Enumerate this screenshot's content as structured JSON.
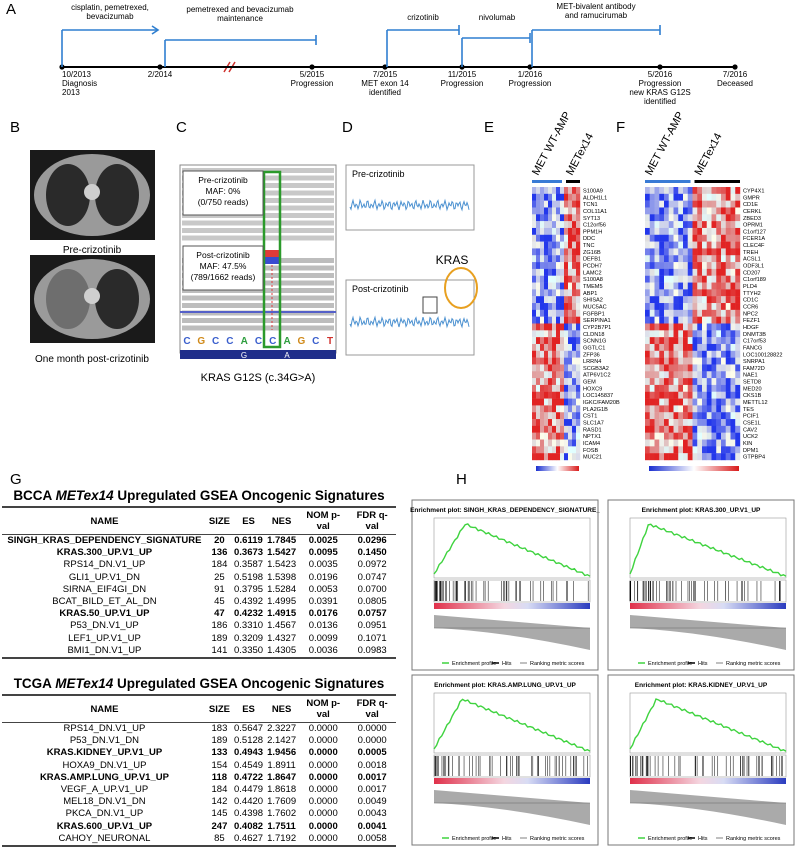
{
  "panelA": {
    "label": "A",
    "treatments": [
      {
        "lines": [
          "cisplatin, pemetrexed,",
          "bevacizumab"
        ]
      },
      {
        "lines": [
          "pemetrexed and bevacizumab",
          "maintenance"
        ]
      },
      {
        "lines": [
          "crizotinib"
        ]
      },
      {
        "lines": [
          "nivolumab"
        ]
      },
      {
        "lines": [
          "MET-bivalent antibody",
          "and ramucirumab"
        ]
      }
    ],
    "events": [
      {
        "lines": [
          "10/2013",
          "Diagnosis",
          "2013"
        ]
      },
      {
        "lines": [
          "2/2014"
        ]
      },
      {
        "lines": [
          "5/2015",
          "Progression"
        ]
      },
      {
        "lines": [
          "7/2015",
          "MET exon 14",
          "identified"
        ]
      },
      {
        "lines": [
          "11/2015",
          "Progression"
        ]
      },
      {
        "lines": [
          "1/2016",
          "Progression"
        ]
      },
      {
        "lines": [
          "5/2016",
          "Progression",
          "new KRAS G12S",
          "identified"
        ]
      },
      {
        "lines": [
          "7/2016",
          "Deceased"
        ]
      }
    ]
  },
  "panelB": {
    "label": "B",
    "captions": [
      "Pre-crizotinib",
      "One month post-crizotinib"
    ]
  },
  "panelC": {
    "label": "C",
    "pre": [
      "Pre-crizotinib",
      "MAF: 0%",
      "(0/750 reads)"
    ],
    "post": [
      "Post-crizotinib",
      "MAF: 47.5%",
      "(789/1662 reads)"
    ],
    "sequence": [
      "C",
      "G",
      "C",
      "C",
      "A",
      "C",
      "C",
      "A",
      "G",
      "C",
      "T"
    ],
    "codon": [
      "G",
      "A"
    ],
    "base_colors": {
      "A": "#2e9e3e",
      "C": "#3a5fcd",
      "G": "#d08a1a",
      "T": "#d0312d"
    },
    "caption": "KRAS G12S (c.34G>A)"
  },
  "panelD": {
    "label": "D",
    "pre": "Pre-crizotinib",
    "post": "Post-crizotinib",
    "gene": "KRAS"
  },
  "panelE": {
    "label": "E",
    "columns": [
      "MET WT-AMP",
      "METex14"
    ],
    "genes": [
      "S100A9",
      "ALDH1L1",
      "TCN1",
      "COL11A1",
      "SYT13",
      "C12orf56",
      "PPM1H",
      "DDC",
      "TNC",
      "ZG16B",
      "DEFB1",
      "PCDH7",
      "LAMC2",
      "S100A8",
      "TMEM5",
      "ABP1",
      "SHISA2",
      "MUC5AC",
      "FGFBP1",
      "SERPINA1",
      "CYP2B7P1",
      "CLDN18",
      "SCNN1G",
      "GGTLC1",
      "ZFP36",
      "LRRN4",
      "SCGB3A2",
      "ATP6V1C2",
      "GEM",
      "HOXC9",
      "LOC145837",
      "IGKC/FAM20B",
      "PLA2G1B",
      "CST1",
      "SLC1A7",
      "RASD1",
      "NPTX1",
      "ICAM4",
      "FOSB",
      "MUC21"
    ]
  },
  "panelF": {
    "label": "F",
    "columns": [
      "MET WT-AMP",
      "METex14"
    ],
    "genes": [
      "CYP4X1",
      "GMPR",
      "CD1E",
      "CERKL",
      "ZBED3",
      "OPRM1",
      "C1orf127",
      "FCER1A",
      "CLEC4F",
      "TREH",
      "ACSL1",
      "ODF3L1",
      "CD207",
      "C1orf189",
      "PLD4",
      "TTYH2",
      "CD1C",
      "CCR6",
      "NPC2",
      "FEZF1",
      "HDGF",
      "DNMT3B",
      "C17orf53",
      "FANCG",
      "LOC100128822",
      "SNRPA1",
      "FAM72D",
      "NAE1",
      "SETD8",
      "MED20",
      "CKS1B",
      "METTL12",
      "TES",
      "PCIF1",
      "CSE1L",
      "CAV2",
      "UCK2",
      "KIN",
      "DPM1",
      "GTPBP4"
    ]
  },
  "panelG": {
    "label": "G",
    "tables": [
      {
        "title": {
          "prefix": "BCCA",
          "italic": "METex14",
          "suffix": "Upregulated GSEA Oncogenic Signatures"
        },
        "headers": [
          "NAME",
          "SIZE",
          "ES",
          "NES",
          "NOM p-val",
          "FDR q-val"
        ],
        "rows": [
          {
            "bold": true,
            "cells": [
              "SINGH_KRAS_DEPENDENCY_SIGNATURE",
              "20",
              "0.6119",
              "1.7845",
              "0.0025",
              "0.0296"
            ]
          },
          {
            "bold": true,
            "cells": [
              "KRAS.300_UP.V1_UP",
              "136",
              "0.3673",
              "1.5427",
              "0.0095",
              "0.1450"
            ]
          },
          {
            "bold": false,
            "cells": [
              "RPS14_DN.V1_UP",
              "184",
              "0.3587",
              "1.5423",
              "0.0035",
              "0.0972"
            ]
          },
          {
            "bold": false,
            "cells": [
              "GLI1_UP.V1_DN",
              "25",
              "0.5198",
              "1.5398",
              "0.0196",
              "0.0747"
            ]
          },
          {
            "bold": false,
            "cells": [
              "SIRNA_EIF4GI_DN",
              "91",
              "0.3795",
              "1.5284",
              "0.0053",
              "0.0700"
            ]
          },
          {
            "bold": false,
            "cells": [
              "BCAT_BILD_ET_AL_DN",
              "45",
              "0.4392",
              "1.4995",
              "0.0391",
              "0.0805"
            ]
          },
          {
            "bold": true,
            "cells": [
              "KRAS.50_UP.V1_UP",
              "47",
              "0.4232",
              "1.4915",
              "0.0176",
              "0.0757"
            ]
          },
          {
            "bold": false,
            "cells": [
              "P53_DN.V1_UP",
              "186",
              "0.3310",
              "1.4567",
              "0.0136",
              "0.0951"
            ]
          },
          {
            "bold": false,
            "cells": [
              "LEF1_UP.V1_UP",
              "189",
              "0.3209",
              "1.4327",
              "0.0099",
              "0.1071"
            ]
          },
          {
            "bold": false,
            "cells": [
              "BMI1_DN.V1_UP",
              "141",
              "0.3350",
              "1.4305",
              "0.0036",
              "0.0983"
            ]
          }
        ]
      },
      {
        "title": {
          "prefix": "TCGA",
          "italic": "METex14",
          "suffix": "Upregulated GSEA Oncogenic Signatures"
        },
        "headers": [
          "NAME",
          "SIZE",
          "ES",
          "NES",
          "NOM p-val",
          "FDR q-val"
        ],
        "rows": [
          {
            "bold": false,
            "cells": [
              "RPS14_DN.V1_UP",
              "183",
              "0.5647",
              "2.3227",
              "0.0000",
              "0.0000"
            ]
          },
          {
            "bold": false,
            "cells": [
              "P53_DN.V1_DN",
              "189",
              "0.5128",
              "2.1427",
              "0.0000",
              "0.0000"
            ]
          },
          {
            "bold": true,
            "cells": [
              "KRAS.KIDNEY_UP.V1_UP",
              "133",
              "0.4943",
              "1.9456",
              "0.0000",
              "0.0005"
            ]
          },
          {
            "bold": false,
            "cells": [
              "HOXA9_DN.V1_UP",
              "154",
              "0.4549",
              "1.8911",
              "0.0000",
              "0.0018"
            ]
          },
          {
            "bold": true,
            "cells": [
              "KRAS.AMP.LUNG_UP.V1_UP",
              "118",
              "0.4722",
              "1.8647",
              "0.0000",
              "0.0017"
            ]
          },
          {
            "bold": false,
            "cells": [
              "VEGF_A_UP.V1_UP",
              "184",
              "0.4479",
              "1.8618",
              "0.0000",
              "0.0017"
            ]
          },
          {
            "bold": false,
            "cells": [
              "MEL18_DN.V1_DN",
              "142",
              "0.4420",
              "1.7609",
              "0.0000",
              "0.0049"
            ]
          },
          {
            "bold": false,
            "cells": [
              "PKCA_DN.V1_UP",
              "145",
              "0.4398",
              "1.7602",
              "0.0000",
              "0.0043"
            ]
          },
          {
            "bold": true,
            "cells": [
              "KRAS.600_UP.V1_UP",
              "247",
              "0.4082",
              "1.7511",
              "0.0000",
              "0.0041"
            ]
          },
          {
            "bold": false,
            "cells": [
              "CAHOY_NEURONAL",
              "85",
              "0.4627",
              "1.7192",
              "0.0000",
              "0.0058"
            ]
          }
        ]
      }
    ]
  },
  "panelH": {
    "label": "H",
    "plots": [
      "Enrichment plot: SINGH_KRAS_DEPENDENCY_SIGNATURE_",
      "Enrichment plot: KRAS.300_UP.V1_UP",
      "Enrichment plot: KRAS.AMP.LUNG_UP.V1_UP",
      "Enrichment plot: KRAS.KIDNEY_UP.V1_UP"
    ],
    "legend": [
      "Enrichment profile",
      "Hits",
      "Ranking metric scores"
    ]
  }
}
